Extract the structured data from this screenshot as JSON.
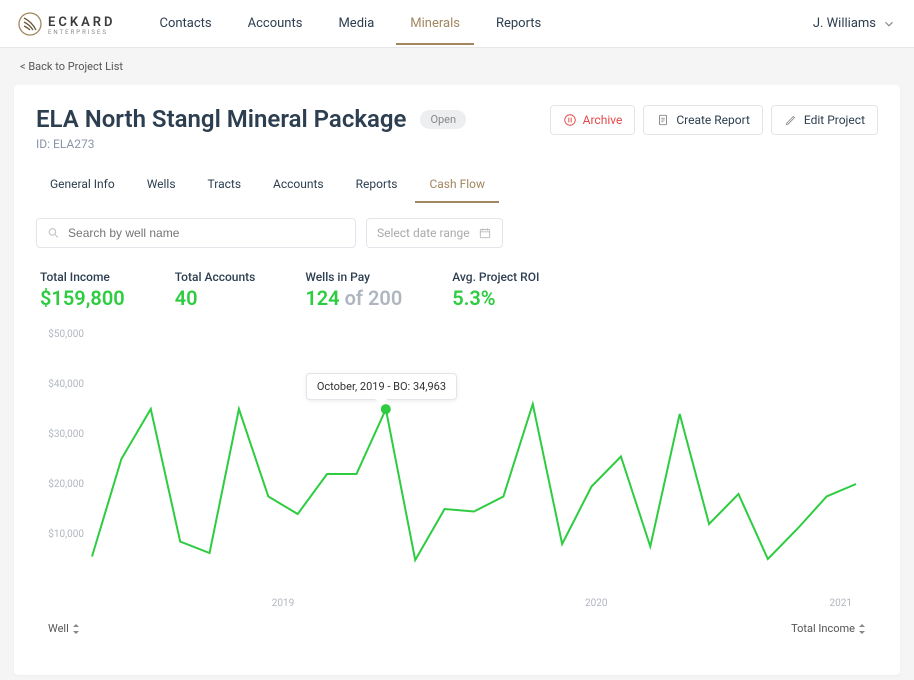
{
  "brand": {
    "name": "ECKARD",
    "sub": "ENTERPRISES"
  },
  "nav": {
    "items": [
      "Contacts",
      "Accounts",
      "Media",
      "Minerals",
      "Reports"
    ],
    "active_index": 3
  },
  "user": {
    "name": "J. Williams"
  },
  "back_link": "< Back to Project List",
  "project": {
    "title": "ELA North Stangl Mineral Package",
    "status": "Open",
    "id_label": "ID: ELA273"
  },
  "actions": {
    "archive": "Archive",
    "create_report": "Create Report",
    "edit_project": "Edit Project"
  },
  "tabs": {
    "items": [
      "General Info",
      "Wells",
      "Tracts",
      "Accounts",
      "Reports",
      "Cash Flow"
    ],
    "active_index": 5
  },
  "filters": {
    "search_placeholder": "Search by well name",
    "date_placeholder": "Select date range"
  },
  "stats": {
    "total_income": {
      "label": "Total Income",
      "value": "$159,800"
    },
    "total_accounts": {
      "label": "Total Accounts",
      "value": "40"
    },
    "wells_in_pay": {
      "label": "Wells in Pay",
      "value": "124",
      "divider": " of ",
      "total": "200"
    },
    "avg_roi": {
      "label": "Avg. Project ROI",
      "value": "5.3%"
    }
  },
  "chart": {
    "type": "line",
    "line_color": "#2ecc40",
    "line_width": 2,
    "point_color": "#2ecc40",
    "background_color": "#ffffff",
    "axis_label_color": "#b0b6bf",
    "axis_label_fontsize": 10,
    "y_axis": {
      "min": 0,
      "max": 50000,
      "step": 10000,
      "labels": [
        "$10,000",
        "$20,000",
        "$30,000",
        "$40,000",
        "$50,000"
      ]
    },
    "x_axis": {
      "labels": [
        "2019",
        "2020",
        "2021"
      ],
      "positions": [
        0.25,
        0.66,
        0.98
      ]
    },
    "values": [
      5500,
      25000,
      35000,
      8500,
      6200,
      35000,
      17500,
      14000,
      22000,
      22000,
      34963,
      4800,
      15000,
      14500,
      17500,
      36000,
      8000,
      19500,
      25500,
      7500,
      34000,
      12000,
      18000,
      5000,
      11000,
      17500,
      20000
    ],
    "tooltip": {
      "text": "October, 2019 - BO: 34,963",
      "index": 10
    }
  },
  "table": {
    "columns": {
      "well": "Well",
      "total_income": "Total Income"
    }
  },
  "colors": {
    "accent_green": "#2ecc40",
    "accent_gold": "#a18660",
    "danger": "#e24a4a",
    "muted": "#b0b6bf",
    "border": "#e2e5ea"
  }
}
